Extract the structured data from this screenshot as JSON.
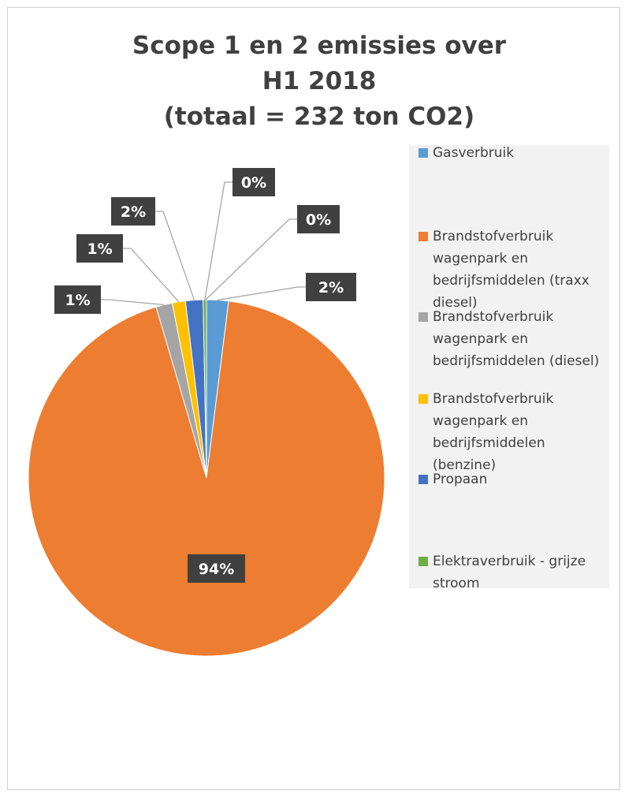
{
  "chart_data": {
    "type": "pie",
    "title_lines": [
      "Scope 1 en 2 emissies over",
      "H1 2018",
      "(totaal = 232 ton CO2)"
    ],
    "legend_placement": "right",
    "slices": [
      {
        "name": "Gasverbruik",
        "value": 2,
        "label": "2%",
        "color": "#5B9BD5"
      },
      {
        "name": "Brandstofverbruik wagenpark en bedrijfsmiddelen (traxx diesel)",
        "value": 94,
        "label": "94%",
        "color": "#ED7D31"
      },
      {
        "name": "Brandstofverbruik wagenpark en bedrijfsmiddelen (diesel)",
        "value": 1.5,
        "label": "1%",
        "color": "#A5A5A5"
      },
      {
        "name": "Brandstofverbruik wagenpark en bedrijfsmiddelen (benzine)",
        "value": 1.2,
        "label": "1%",
        "color": "#FFC000"
      },
      {
        "name": "Propaan",
        "value": 1.6,
        "label": "2%",
        "color": "#4472C4"
      },
      {
        "name": "Elektraverbruik - grijze stroom",
        "value": 0.3,
        "label": "0%",
        "color": "#70AD47"
      }
    ],
    "extra_labels": [
      "0%"
    ]
  }
}
